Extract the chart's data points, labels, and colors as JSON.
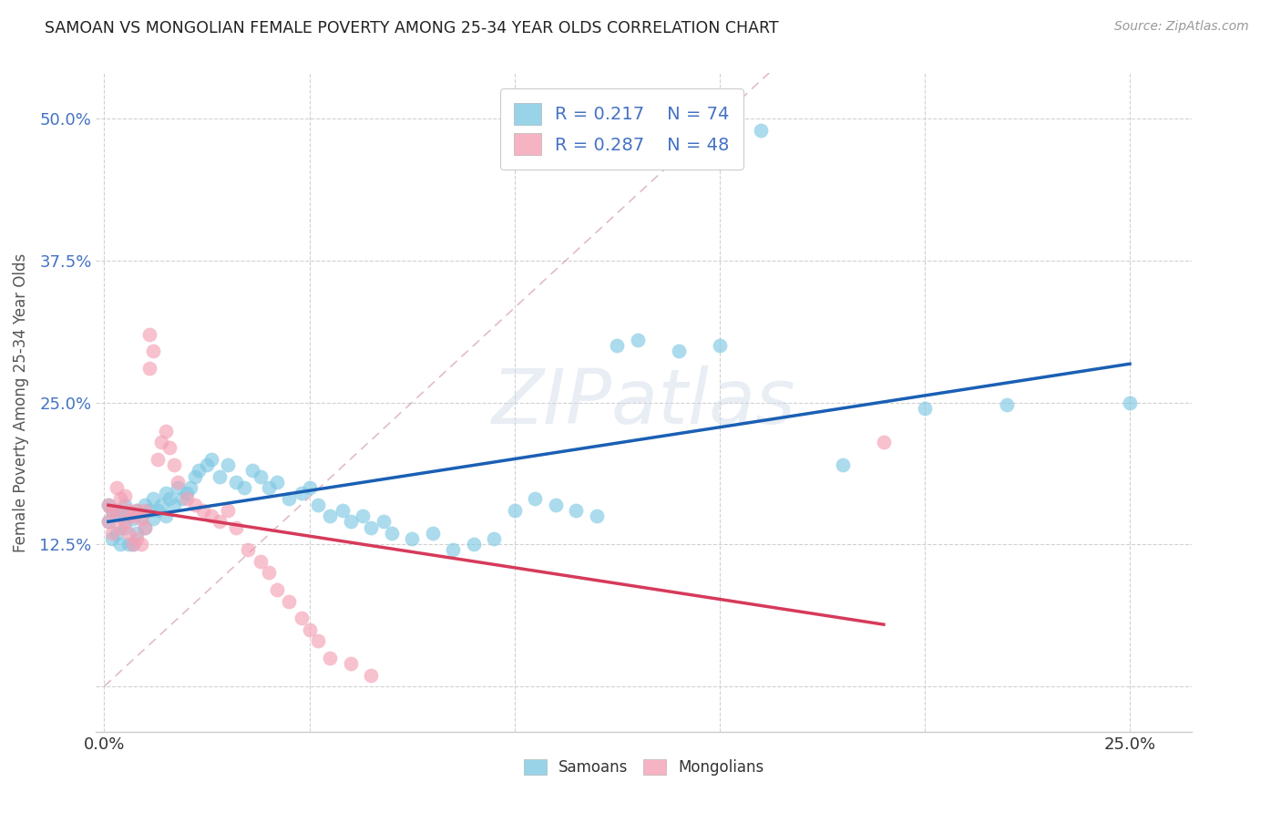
{
  "title": "SAMOAN VS MONGOLIAN FEMALE POVERTY AMONG 25-34 YEAR OLDS CORRELATION CHART",
  "source": "Source: ZipAtlas.com",
  "ylabel": "Female Poverty Among 25-34 Year Olds",
  "xlim": [
    -0.002,
    0.265
  ],
  "ylim": [
    -0.04,
    0.54
  ],
  "x_ticks": [
    0.0,
    0.25
  ],
  "x_tick_labels": [
    "0.0%",
    "25.0%"
  ],
  "y_ticks": [
    0.0,
    0.125,
    0.25,
    0.375,
    0.5
  ],
  "y_tick_labels": [
    "",
    "12.5%",
    "25.0%",
    "37.5%",
    "50.0%"
  ],
  "legend_r_samoan": "0.217",
  "legend_n_samoan": "74",
  "legend_r_mongolian": "0.287",
  "legend_n_mongolian": "48",
  "samoan_color": "#7ec8e3",
  "mongolian_color": "#f4a0b5",
  "samoan_line_color": "#1a5fb4",
  "mongolian_line_color": "#d63a5a",
  "diagonal_color": "#d4a0b0",
  "watermark": "ZIPatlas",
  "samoan_x": [
    0.001,
    0.001,
    0.002,
    0.002,
    0.003,
    0.003,
    0.004,
    0.004,
    0.005,
    0.005,
    0.006,
    0.006,
    0.007,
    0.007,
    0.008,
    0.008,
    0.009,
    0.01,
    0.01,
    0.011,
    0.012,
    0.012,
    0.013,
    0.014,
    0.015,
    0.015,
    0.016,
    0.017,
    0.018,
    0.019,
    0.02,
    0.021,
    0.022,
    0.023,
    0.025,
    0.026,
    0.028,
    0.03,
    0.032,
    0.034,
    0.036,
    0.038,
    0.04,
    0.042,
    0.045,
    0.048,
    0.05,
    0.052,
    0.055,
    0.058,
    0.06,
    0.063,
    0.065,
    0.068,
    0.07,
    0.075,
    0.08,
    0.085,
    0.09,
    0.095,
    0.1,
    0.105,
    0.11,
    0.115,
    0.12,
    0.125,
    0.13,
    0.14,
    0.15,
    0.16,
    0.18,
    0.2,
    0.22,
    0.25
  ],
  "samoan_y": [
    0.16,
    0.145,
    0.155,
    0.13,
    0.155,
    0.135,
    0.15,
    0.125,
    0.16,
    0.14,
    0.15,
    0.125,
    0.148,
    0.125,
    0.155,
    0.135,
    0.15,
    0.16,
    0.14,
    0.155,
    0.165,
    0.148,
    0.155,
    0.16,
    0.17,
    0.15,
    0.165,
    0.16,
    0.175,
    0.165,
    0.17,
    0.175,
    0.185,
    0.19,
    0.195,
    0.2,
    0.185,
    0.195,
    0.18,
    0.175,
    0.19,
    0.185,
    0.175,
    0.18,
    0.165,
    0.17,
    0.175,
    0.16,
    0.15,
    0.155,
    0.145,
    0.15,
    0.14,
    0.145,
    0.135,
    0.13,
    0.135,
    0.12,
    0.125,
    0.13,
    0.155,
    0.165,
    0.16,
    0.155,
    0.15,
    0.3,
    0.305,
    0.295,
    0.3,
    0.49,
    0.195,
    0.245,
    0.248,
    0.25
  ],
  "mongolian_x": [
    0.001,
    0.001,
    0.002,
    0.002,
    0.003,
    0.003,
    0.004,
    0.004,
    0.005,
    0.005,
    0.006,
    0.006,
    0.007,
    0.007,
    0.008,
    0.008,
    0.009,
    0.009,
    0.01,
    0.01,
    0.011,
    0.011,
    0.012,
    0.013,
    0.014,
    0.015,
    0.016,
    0.017,
    0.018,
    0.02,
    0.022,
    0.024,
    0.026,
    0.028,
    0.03,
    0.032,
    0.035,
    0.038,
    0.04,
    0.042,
    0.045,
    0.048,
    0.05,
    0.052,
    0.055,
    0.06,
    0.065,
    0.19
  ],
  "mongolian_y": [
    0.16,
    0.145,
    0.155,
    0.135,
    0.175,
    0.155,
    0.165,
    0.14,
    0.168,
    0.145,
    0.155,
    0.135,
    0.15,
    0.125,
    0.155,
    0.13,
    0.148,
    0.125,
    0.155,
    0.14,
    0.28,
    0.31,
    0.295,
    0.2,
    0.215,
    0.225,
    0.21,
    0.195,
    0.18,
    0.165,
    0.16,
    0.155,
    0.15,
    0.145,
    0.155,
    0.14,
    0.12,
    0.11,
    0.1,
    0.085,
    0.075,
    0.06,
    0.05,
    0.04,
    0.025,
    0.02,
    0.01,
    0.215
  ]
}
